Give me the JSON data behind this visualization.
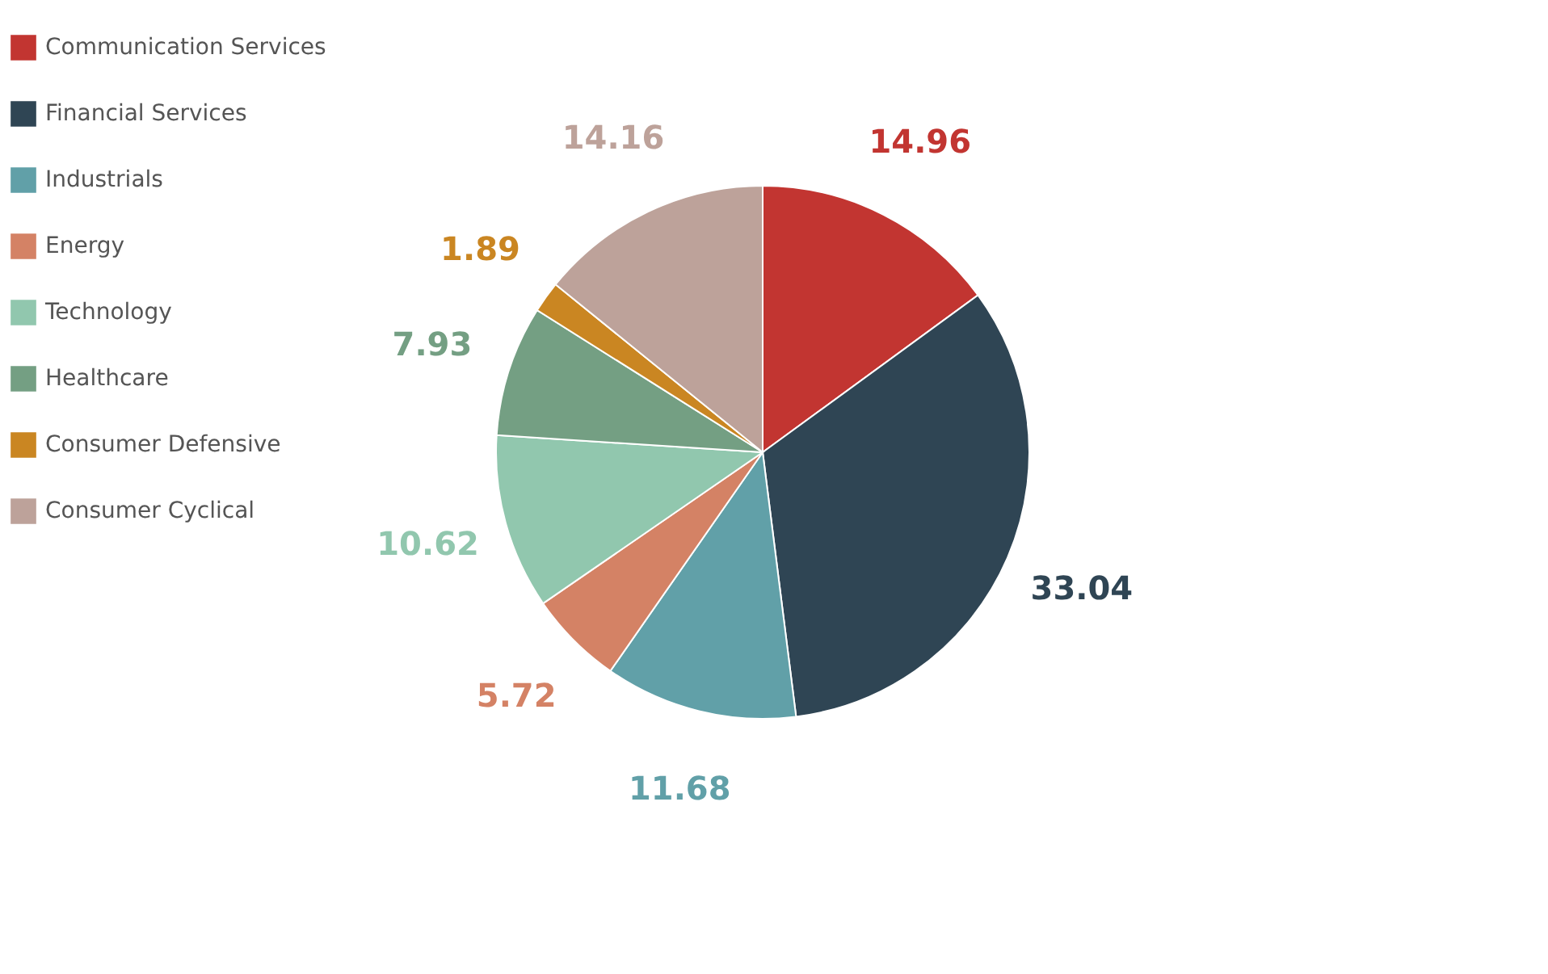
{
  "chart_data": {
    "type": "pie",
    "categories": [
      "Communication Services",
      "Financial Services",
      "Industrials",
      "Energy",
      "Technology",
      "Healthcare",
      "Consumer Defensive",
      "Consumer Cyclical"
    ],
    "values": [
      14.96,
      33.04,
      11.68,
      5.72,
      10.62,
      7.93,
      1.89,
      14.16
    ],
    "colors": [
      "#c23531",
      "#2f4554",
      "#61a0a8",
      "#d48265",
      "#91c7ae",
      "#749f83",
      "#ca8622",
      "#bda29a"
    ],
    "data_labels": true,
    "legend": "top left"
  }
}
